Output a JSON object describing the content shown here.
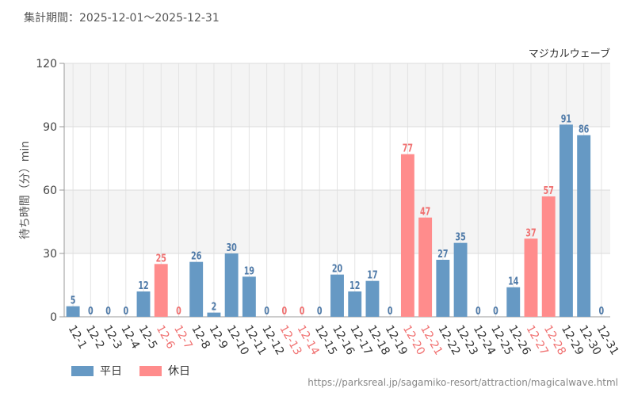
{
  "header": {
    "title": "集計期間：2025-12-01～2025-12-31"
  },
  "footer": {
    "credit": "https://parksreal.jp/sagamiko-resort/attraction/magicalwave.html"
  },
  "legend": [
    {
      "label": "平日",
      "color": "#6699c4"
    },
    {
      "label": "休日",
      "color": "#ff8c8c"
    }
  ],
  "colors": {
    "weekday": "#6699c4",
    "holiday": "#ff8c8c",
    "weekday_label": "#4f7aa8",
    "holiday_label": "#f07070"
  },
  "chart_data": {
    "type": "bar",
    "title": "マジカルウェーブ",
    "ylabel": "待ち時間（分）min",
    "xlabel": "",
    "ylim": [
      0,
      120
    ],
    "yticks": [
      0,
      30,
      60,
      90,
      120
    ],
    "grid": true,
    "legend_position": "bottom-left",
    "categories": [
      "12-1",
      "12-2",
      "12-3",
      "12-4",
      "12-5",
      "12-6",
      "12-7",
      "12-8",
      "12-9",
      "12-10",
      "12-11",
      "12-12",
      "12-13",
      "12-14",
      "12-15",
      "12-16",
      "12-17",
      "12-18",
      "12-19",
      "12-20",
      "12-21",
      "12-22",
      "12-23",
      "12-24",
      "12-25",
      "12-26",
      "12-27",
      "12-28",
      "12-29",
      "12-30",
      "12-31"
    ],
    "values": [
      5,
      0,
      0,
      0,
      12,
      25,
      0,
      26,
      2,
      30,
      19,
      0,
      0,
      0,
      0,
      20,
      12,
      17,
      0,
      77,
      47,
      27,
      35,
      0,
      0,
      14,
      37,
      57,
      91,
      86,
      0
    ],
    "day_type": [
      "平日",
      "平日",
      "平日",
      "平日",
      "平日",
      "休日",
      "休日",
      "平日",
      "平日",
      "平日",
      "平日",
      "平日",
      "休日",
      "休日",
      "平日",
      "平日",
      "平日",
      "平日",
      "平日",
      "休日",
      "休日",
      "平日",
      "平日",
      "平日",
      "平日",
      "平日",
      "休日",
      "休日",
      "平日",
      "平日",
      "平日"
    ]
  }
}
